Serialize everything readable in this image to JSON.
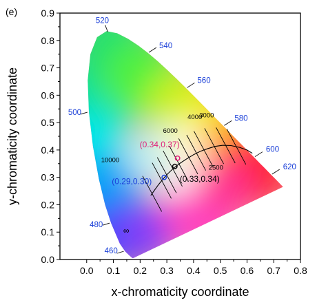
{
  "panel_label": "(e)",
  "chart_data": {
    "type": "scatter",
    "title": "",
    "xlabel": "x-chromaticity coordinate",
    "ylabel": "y-chromaticity coordinate",
    "xlim": [
      -0.1,
      0.8
    ],
    "ylim": [
      0.0,
      0.9
    ],
    "xticks": [
      "0.0",
      "0.1",
      "0.2",
      "0.3",
      "0.4",
      "0.5",
      "0.6",
      "0.7",
      "0.8"
    ],
    "yticks": [
      "0.0",
      "0.1",
      "0.2",
      "0.3",
      "0.4",
      "0.5",
      "0.6",
      "0.7",
      "0.8",
      "0.9"
    ],
    "grid": false,
    "spectral_locus_labels": [
      {
        "label": "460",
        "x": 0.144,
        "y": 0.03
      },
      {
        "label": "480",
        "x": 0.091,
        "y": 0.133
      },
      {
        "label": "500",
        "x": 0.008,
        "y": 0.538
      },
      {
        "label": "520",
        "x": 0.074,
        "y": 0.834
      },
      {
        "label": "540",
        "x": 0.23,
        "y": 0.754
      },
      {
        "label": "560",
        "x": 0.373,
        "y": 0.625
      },
      {
        "label": "580",
        "x": 0.512,
        "y": 0.487
      },
      {
        "label": "600",
        "x": 0.627,
        "y": 0.373
      },
      {
        "label": "620",
        "x": 0.691,
        "y": 0.309
      }
    ],
    "planckian_locus_labels": [
      {
        "label": "10000",
        "x": 0.281,
        "y": 0.288
      },
      {
        "label": "6000",
        "x": 0.322,
        "y": 0.332
      },
      {
        "label": "4000",
        "x": 0.38,
        "y": 0.377
      },
      {
        "label": "3000",
        "x": 0.437,
        "y": 0.404
      },
      {
        "label": "2500",
        "x": 0.477,
        "y": 0.414
      },
      {
        "label": "∞",
        "x": 0.24,
        "y": 0.234
      }
    ],
    "points": [
      {
        "label": "(0.34,0.37)",
        "x": 0.34,
        "y": 0.37,
        "color": "#e0207a"
      },
      {
        "label": "(0.33,0.34)",
        "x": 0.33,
        "y": 0.34,
        "color": "#000000"
      },
      {
        "label": "(0.29,0.30)",
        "x": 0.29,
        "y": 0.3,
        "color": "#1a3fd8"
      }
    ],
    "colors": {
      "wavelength_label": "#1a3fd8",
      "point_pink": "#e0207a",
      "point_blue": "#1a3fd8",
      "point_black": "#000000"
    }
  }
}
